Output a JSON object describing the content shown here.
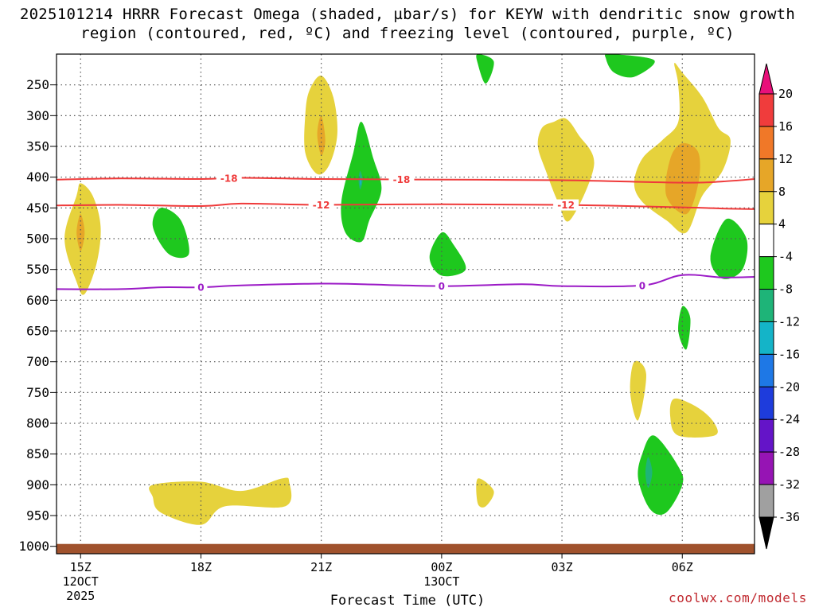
{
  "chart_data": {
    "type": "contour",
    "title": "2025101214 HRRR Forecast Omega (shaded, µbar/s) for KEYW with dendritic snow growth region (contoured, red, ºC) and freezing level (contoured, purple, ºC)",
    "xlabel": "Forecast Time (UTC)",
    "ylabel": "",
    "credit": "coolwx.com/models",
    "x_axis": {
      "range_hours": [
        14.4,
        31.8
      ],
      "ticks": [
        {
          "hour": 15,
          "lines": [
            "15Z",
            "12OCT",
            "2025"
          ]
        },
        {
          "hour": 18,
          "lines": [
            "18Z"
          ]
        },
        {
          "hour": 21,
          "lines": [
            "21Z"
          ]
        },
        {
          "hour": 24,
          "lines": [
            "00Z",
            "13OCT"
          ]
        },
        {
          "hour": 27,
          "lines": [
            "03Z"
          ]
        },
        {
          "hour": 30,
          "lines": [
            "06Z"
          ]
        }
      ]
    },
    "y_axis": {
      "unit": "hPa",
      "range": [
        200,
        1012
      ],
      "ticks": [
        250,
        300,
        350,
        400,
        450,
        500,
        550,
        600,
        650,
        700,
        750,
        800,
        850,
        900,
        950,
        1000
      ]
    },
    "grid": true,
    "colorbar": {
      "labels": [
        "20",
        "16",
        "12",
        "8",
        "4",
        "-4",
        "-8",
        "-12",
        "-16",
        "-20",
        "-24",
        "-28",
        "-32",
        "-36"
      ],
      "colors": [
        "#e8107a",
        "#f03c3c",
        "#f07828",
        "#e6a628",
        "#e6d23c",
        "#ffffff",
        "#1ec81e",
        "#1eb478",
        "#14b4c8",
        "#1e78e6",
        "#1e3cdc",
        "#6414c8",
        "#9614b4",
        "#a0a0a0",
        "#000000"
      ]
    },
    "contour_lines": [
      {
        "label": "-18",
        "color": "#ef3a3a",
        "label_positions": [
          [
            18.7
          ],
          [
            23.0
          ]
        ],
        "points": [
          [
            14.4,
            404
          ],
          [
            16.0,
            402
          ],
          [
            18.0,
            403
          ],
          [
            19.0,
            401
          ],
          [
            21.0,
            403
          ],
          [
            24.0,
            404
          ],
          [
            27.0,
            405
          ],
          [
            30.0,
            409
          ],
          [
            31.0,
            407
          ],
          [
            31.8,
            403
          ]
        ]
      },
      {
        "label": "-12",
        "color": "#ef3a3a",
        "label_positions": [
          [
            21.0
          ],
          [
            27.1
          ]
        ],
        "points": [
          [
            14.4,
            446
          ],
          [
            16.0,
            445
          ],
          [
            18.0,
            447
          ],
          [
            19.0,
            443
          ],
          [
            21.0,
            445
          ],
          [
            24.0,
            444
          ],
          [
            27.0,
            445
          ],
          [
            30.0,
            449
          ],
          [
            31.0,
            451
          ],
          [
            31.8,
            452
          ]
        ]
      },
      {
        "label": "0",
        "color": "#9b1ac6",
        "label_positions": [
          [
            18.0
          ],
          [
            24.0
          ],
          [
            29.0
          ]
        ],
        "points": [
          [
            14.4,
            582
          ],
          [
            16.0,
            582
          ],
          [
            17.0,
            579
          ],
          [
            18.0,
            579
          ],
          [
            19.0,
            576
          ],
          [
            21.0,
            573
          ],
          [
            22.0,
            574
          ],
          [
            24.0,
            577
          ],
          [
            26.0,
            574
          ],
          [
            27.0,
            577
          ],
          [
            29.0,
            576
          ],
          [
            30.0,
            559
          ],
          [
            31.0,
            563
          ],
          [
            31.8,
            562
          ]
        ]
      }
    ],
    "shaded_regions": [
      {
        "level": "4",
        "color": "#e6d23c",
        "points": [
          [
            14.9,
            430
          ],
          [
            15.0,
            410
          ],
          [
            15.3,
            430
          ],
          [
            15.5,
            480
          ],
          [
            15.4,
            540
          ],
          [
            15.1,
            590
          ],
          [
            14.9,
            570
          ],
          [
            14.6,
            500
          ]
        ]
      },
      {
        "level": "8",
        "color": "#e6a628",
        "points": [
          [
            15.0,
            460
          ],
          [
            15.1,
            490
          ],
          [
            15.0,
            520
          ],
          [
            14.9,
            490
          ]
        ]
      },
      {
        "level": "4",
        "color": "#e6d23c",
        "points": [
          [
            20.7,
            260
          ],
          [
            21.0,
            235
          ],
          [
            21.3,
            270
          ],
          [
            21.4,
            330
          ],
          [
            21.2,
            380
          ],
          [
            20.9,
            395
          ],
          [
            20.6,
            360
          ],
          [
            20.6,
            300
          ]
        ]
      },
      {
        "level": "8",
        "color": "#e6a628",
        "points": [
          [
            21.0,
            300
          ],
          [
            21.1,
            340
          ],
          [
            21.0,
            365
          ],
          [
            20.9,
            330
          ]
        ]
      },
      {
        "level": "4",
        "color": "#e6d23c",
        "points": [
          [
            26.8,
            310
          ],
          [
            27.1,
            305
          ],
          [
            27.4,
            330
          ],
          [
            27.8,
            380
          ],
          [
            27.2,
            470
          ],
          [
            26.9,
            440
          ],
          [
            26.6,
            390
          ],
          [
            26.4,
            350
          ],
          [
            26.5,
            320
          ]
        ]
      },
      {
        "level": "4",
        "color": "#e6d23c",
        "points": [
          [
            29.8,
            215
          ],
          [
            30.0,
            230
          ],
          [
            30.5,
            270
          ],
          [
            30.9,
            320
          ],
          [
            31.2,
            340
          ],
          [
            31.0,
            390
          ],
          [
            30.5,
            430
          ],
          [
            30.1,
            490
          ],
          [
            29.6,
            470
          ],
          [
            29.0,
            440
          ],
          [
            28.8,
            410
          ],
          [
            29.0,
            370
          ],
          [
            29.5,
            340
          ],
          [
            29.9,
            310
          ],
          [
            29.9,
            250
          ]
        ]
      },
      {
        "level": "8",
        "color": "#e6a628",
        "points": [
          [
            30.0,
            345
          ],
          [
            30.4,
            360
          ],
          [
            30.4,
            410
          ],
          [
            30.1,
            460
          ],
          [
            29.6,
            430
          ],
          [
            29.7,
            370
          ]
        ]
      },
      {
        "level": "4",
        "color": "#e6d23c",
        "points": [
          [
            28.8,
            700
          ],
          [
            29.1,
            720
          ],
          [
            28.9,
            795
          ],
          [
            28.7,
            750
          ]
        ]
      },
      {
        "level": "4",
        "color": "#e6d23c",
        "points": [
          [
            29.8,
            760
          ],
          [
            30.4,
            775
          ],
          [
            30.8,
            800
          ],
          [
            30.8,
            820
          ],
          [
            29.9,
            820
          ],
          [
            29.7,
            790
          ]
        ]
      },
      {
        "level": "4",
        "color": "#e6d23c",
        "points": [
          [
            16.8,
            900
          ],
          [
            18.0,
            895
          ],
          [
            19.0,
            910
          ],
          [
            20.0,
            890
          ],
          [
            20.2,
            895
          ],
          [
            20.1,
            935
          ],
          [
            18.6,
            935
          ],
          [
            18.0,
            965
          ],
          [
            17.0,
            945
          ],
          [
            16.8,
            920
          ]
        ]
      },
      {
        "level": "4",
        "color": "#e6d23c",
        "points": [
          [
            24.9,
            890
          ],
          [
            25.3,
            910
          ],
          [
            25.1,
            935
          ],
          [
            24.9,
            930
          ]
        ]
      },
      {
        "level": "-4",
        "color": "#1ec81e",
        "points": [
          [
            22.0,
            310
          ],
          [
            22.3,
            370
          ],
          [
            22.5,
            420
          ],
          [
            22.2,
            470
          ],
          [
            22.0,
            505
          ],
          [
            21.6,
            490
          ],
          [
            21.5,
            440
          ],
          [
            21.8,
            360
          ]
        ]
      },
      {
        "level": "-8",
        "color": "#1eb478",
        "points": [
          [
            21.97,
            390
          ],
          [
            22.03,
            405
          ],
          [
            21.97,
            420
          ],
          [
            21.93,
            405
          ]
        ]
      },
      {
        "level": "-12",
        "color": "#14b4c8",
        "points": [
          [
            21.98,
            402
          ],
          [
            22.0,
            408
          ],
          [
            21.98,
            414
          ],
          [
            21.96,
            408
          ]
        ]
      },
      {
        "level": "-4",
        "color": "#1ec81e",
        "points": [
          [
            17.0,
            450
          ],
          [
            17.5,
            470
          ],
          [
            17.7,
            525
          ],
          [
            17.2,
            525
          ],
          [
            16.8,
            480
          ]
        ]
      },
      {
        "level": "-4",
        "color": "#1ec81e",
        "points": [
          [
            24.0,
            490
          ],
          [
            24.3,
            510
          ],
          [
            24.6,
            550
          ],
          [
            24.0,
            560
          ],
          [
            23.7,
            530
          ]
        ]
      },
      {
        "level": "-4",
        "color": "#1ec81e",
        "points": [
          [
            31.1,
            468
          ],
          [
            31.6,
            500
          ],
          [
            31.5,
            550
          ],
          [
            31.0,
            565
          ],
          [
            30.7,
            530
          ]
        ]
      },
      {
        "level": "-4",
        "color": "#1ec81e",
        "points": [
          [
            24.9,
            200
          ],
          [
            25.3,
            212
          ],
          [
            25.1,
            248
          ],
          [
            24.9,
            215
          ]
        ]
      },
      {
        "level": "-4",
        "color": "#1ec81e",
        "points": [
          [
            28.2,
            200
          ],
          [
            29.3,
            210
          ],
          [
            28.8,
            237
          ],
          [
            28.3,
            230
          ],
          [
            28.1,
            208
          ]
        ]
      },
      {
        "level": "-4",
        "color": "#1ec81e",
        "points": [
          [
            30.0,
            610
          ],
          [
            30.2,
            630
          ],
          [
            30.1,
            680
          ],
          [
            29.9,
            650
          ]
        ]
      },
      {
        "level": "-4",
        "color": "#1ec81e",
        "points": [
          [
            29.3,
            820
          ],
          [
            29.9,
            870
          ],
          [
            30.0,
            900
          ],
          [
            29.6,
            945
          ],
          [
            29.2,
            940
          ],
          [
            28.9,
            890
          ],
          [
            29.0,
            850
          ]
        ]
      },
      {
        "level": "-8",
        "color": "#1eb478",
        "points": [
          [
            29.15,
            855
          ],
          [
            29.25,
            880
          ],
          [
            29.15,
            905
          ],
          [
            29.08,
            880
          ]
        ]
      }
    ],
    "ground": {
      "color": "#a0522d",
      "pressure_top": 1000
    }
  }
}
